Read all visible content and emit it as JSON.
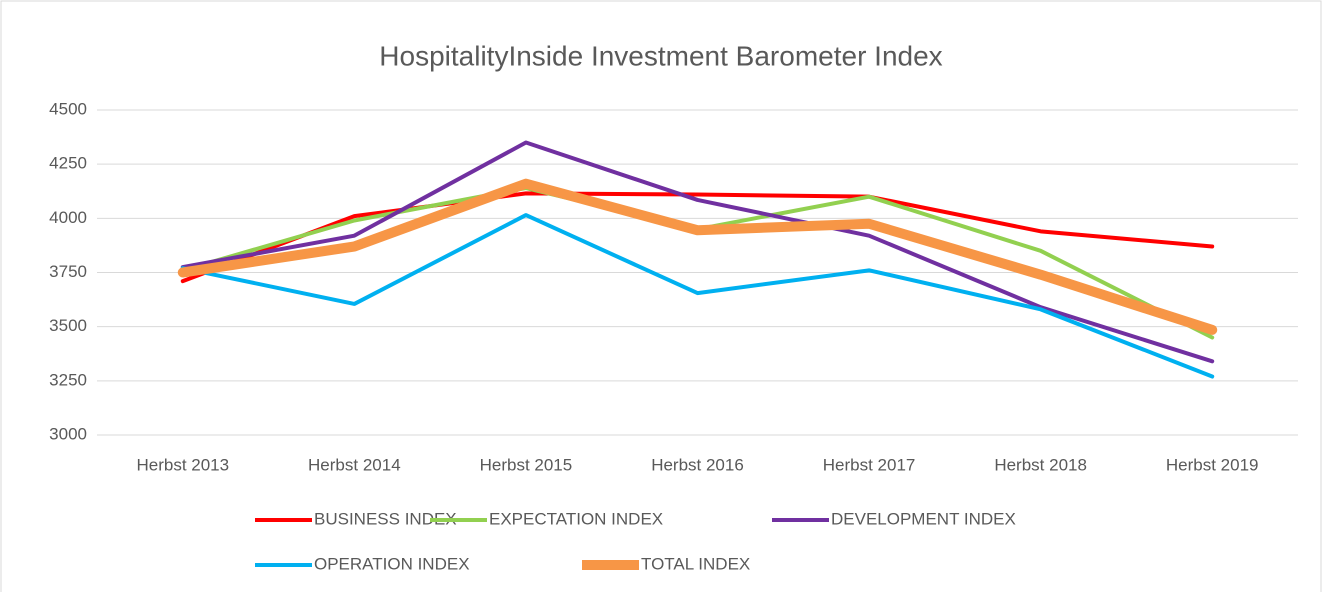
{
  "chart_data": {
    "type": "line",
    "title": "HospitalityInside Investment Barometer Index",
    "categories": [
      "Herbst 2013",
      "Herbst 2014",
      "Herbst 2015",
      "Herbst 2016",
      "Herbst 2017",
      "Herbst 2018",
      "Herbst 2019"
    ],
    "series": [
      {
        "name": "BUSINESS INDEX",
        "color": "#ff0000",
        "values": [
          3710,
          4010,
          4115,
          4110,
          4100,
          3940,
          3870
        ]
      },
      {
        "name": "EXPECTATION INDEX",
        "color": "#92d050",
        "values": [
          3760,
          3990,
          4140,
          3950,
          4100,
          3850,
          3450
        ]
      },
      {
        "name": "DEVELOPMENT INDEX",
        "color": "#7030a0",
        "values": [
          3775,
          3920,
          4350,
          4085,
          3920,
          3590,
          3340
        ]
      },
      {
        "name": "OPERATION INDEX",
        "color": "#00b0f0",
        "values": [
          3770,
          3605,
          4015,
          3655,
          3760,
          3580,
          3270
        ]
      },
      {
        "name": "TOTAL INDEX",
        "color": "#f79646",
        "values": [
          3750,
          3870,
          4160,
          3945,
          3975,
          3740,
          3485
        ]
      }
    ],
    "ylim": [
      3000,
      4500
    ],
    "yticks": [
      3000,
      3250,
      3500,
      3750,
      4000,
      4250,
      4500
    ],
    "grid": true,
    "legend": "bottom"
  }
}
